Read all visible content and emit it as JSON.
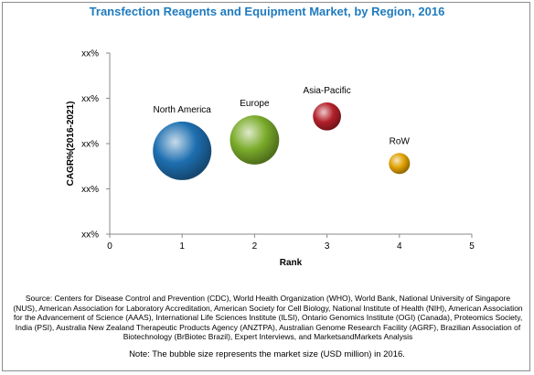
{
  "chart_data": {
    "type": "scatter",
    "title": "Transfection Reagents and Equipment Market, by Region, 2016",
    "xlabel": "Rank",
    "ylabel": "CAGR%(2016-2021)",
    "xlim": [
      0,
      5
    ],
    "x_ticks": [
      "0",
      "1",
      "2",
      "3",
      "4",
      "5"
    ],
    "y_ticks": [
      "xx%",
      "xx%",
      "xx%",
      "xx%",
      "xx%"
    ],
    "grid": false,
    "series": [
      {
        "name": "North America",
        "x": 1,
        "y": 0.46,
        "size": 1.0,
        "color": "#1e6fb0"
      },
      {
        "name": "Europe",
        "x": 2,
        "y": 0.52,
        "size": 0.84,
        "color": "#7aab2a"
      },
      {
        "name": "Asia-Pacific",
        "x": 3,
        "y": 0.65,
        "size": 0.48,
        "color": "#b3202a"
      },
      {
        "name": "RoW",
        "x": 4,
        "y": 0.39,
        "size": 0.36,
        "color": "#e0a000"
      }
    ]
  },
  "source_text": "Source: Centers for Disease Control and Prevention (CDC), World Health Organization (WHO), World Bank, National University of Singapore (NUS), American Association for Laboratory Accreditation, American Society for Cell Biology, National Institute of Health (NIH), American Association for the Advancement of Science (AAAS), International Life Sciences Institute (ILSI), Ontario Genomics Institute (OGI) (Canada), Proteomics Society, India (PSI), Australia New Zealand Therapeutic Products Agency (ANZTPA), Australian Genome Research Facility (AGRF), Brazilian Association of Biotechnology (BrBiotec Brazil), Expert Interviews, and MarketsandMarkets Analysis",
  "note_text": "Note: The bubble size represents the market size (USD million) in 2016."
}
